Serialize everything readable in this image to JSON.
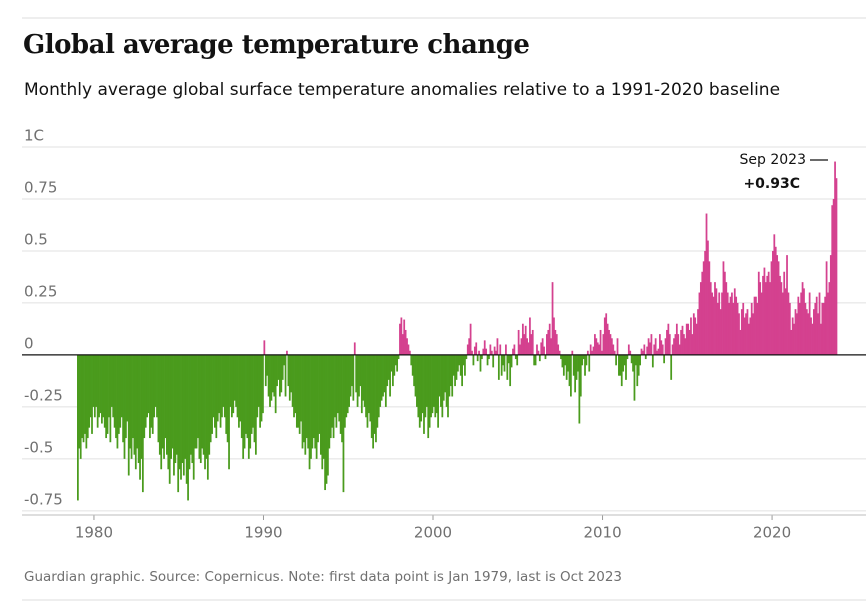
{
  "chart_data": {
    "type": "bar",
    "title": "Global average temperature change",
    "subtitle": "Monthly average global surface temperature anomalies relative to a 1991-2020 baseline",
    "source": "Guardian graphic. Source: Copernicus. Note: first data point is Jan 1979, last is Oct 2023",
    "annotation": {
      "label": "Sep 2023",
      "value_label": "+0.93C"
    },
    "positive_color": "#d4418f",
    "negative_color": "#4a9b1d",
    "grid": true,
    "xlim": [
      1979,
      2023.83
    ],
    "xticks": [
      1980,
      1990,
      2000,
      2010,
      2020
    ],
    "ylim": [
      -0.77,
      1
    ],
    "yticks": [
      {
        "value": 1,
        "label": "1C"
      },
      0.75,
      0.5,
      0.25,
      0,
      -0.25,
      -0.5,
      -0.75
    ],
    "values": [
      -0.7,
      -0.45,
      -0.5,
      -0.4,
      -0.42,
      -0.38,
      -0.45,
      -0.4,
      -0.35,
      -0.3,
      -0.38,
      -0.25,
      -0.3,
      -0.25,
      -0.35,
      -0.3,
      -0.28,
      -0.33,
      -0.3,
      -0.35,
      -0.4,
      -0.38,
      -0.3,
      -0.42,
      -0.25,
      -0.3,
      -0.35,
      -0.4,
      -0.45,
      -0.38,
      -0.35,
      -0.3,
      -0.42,
      -0.5,
      -0.4,
      -0.32,
      -0.58,
      -0.45,
      -0.5,
      -0.4,
      -0.48,
      -0.55,
      -0.45,
      -0.52,
      -0.6,
      -0.5,
      -0.66,
      -0.4,
      -0.35,
      -0.3,
      -0.28,
      -0.4,
      -0.35,
      -0.38,
      -0.3,
      -0.25,
      -0.3,
      -0.42,
      -0.48,
      -0.55,
      -0.45,
      -0.5,
      -0.4,
      -0.48,
      -0.55,
      -0.62,
      -0.5,
      -0.45,
      -0.58,
      -0.52,
      -0.48,
      -0.66,
      -0.55,
      -0.6,
      -0.52,
      -0.58,
      -0.5,
      -0.62,
      -0.7,
      -0.55,
      -0.48,
      -0.52,
      -0.6,
      -0.45,
      -0.45,
      -0.4,
      -0.5,
      -0.52,
      -0.45,
      -0.48,
      -0.55,
      -0.5,
      -0.6,
      -0.48,
      -0.42,
      -0.38,
      -0.3,
      -0.35,
      -0.4,
      -0.32,
      -0.28,
      -0.35,
      -0.3,
      -0.25,
      -0.3,
      -0.38,
      -0.42,
      -0.55,
      -0.25,
      -0.3,
      -0.28,
      -0.22,
      -0.25,
      -0.3,
      -0.35,
      -0.32,
      -0.4,
      -0.5,
      -0.45,
      -0.38,
      -0.4,
      -0.5,
      -0.45,
      -0.38,
      -0.35,
      -0.42,
      -0.48,
      -0.3,
      -0.25,
      -0.35,
      -0.32,
      -0.28,
      0.07,
      -0.15,
      -0.1,
      -0.2,
      -0.25,
      -0.22,
      -0.18,
      -0.2,
      -0.28,
      -0.15,
      -0.12,
      -0.2,
      -0.18,
      -0.12,
      -0.05,
      -0.2,
      0.02,
      -0.15,
      -0.22,
      -0.18,
      -0.25,
      -0.3,
      -0.28,
      -0.35,
      -0.35,
      -0.38,
      -0.32,
      -0.45,
      -0.42,
      -0.48,
      -0.4,
      -0.45,
      -0.55,
      -0.5,
      -0.45,
      -0.4,
      -0.45,
      -0.5,
      -0.42,
      -0.38,
      -0.48,
      -0.55,
      -0.5,
      -0.65,
      -0.62,
      -0.58,
      -0.45,
      -0.4,
      -0.35,
      -0.4,
      -0.3,
      -0.35,
      -0.28,
      -0.32,
      -0.38,
      -0.42,
      -0.66,
      -0.35,
      -0.3,
      -0.28,
      -0.25,
      -0.2,
      -0.15,
      -0.22,
      0.06,
      -0.18,
      -0.25,
      -0.2,
      -0.15,
      -0.28,
      -0.22,
      -0.25,
      -0.3,
      -0.35,
      -0.28,
      -0.32,
      -0.4,
      -0.45,
      -0.38,
      -0.42,
      -0.35,
      -0.3,
      -0.25,
      -0.22,
      -0.2,
      -0.18,
      -0.25,
      -0.15,
      -0.12,
      -0.2,
      -0.08,
      -0.15,
      -0.1,
      -0.05,
      -0.08,
      -0.02,
      0.15,
      0.18,
      0.1,
      0.17,
      0.12,
      0.08,
      0.05,
      0.02,
      -0.05,
      -0.1,
      -0.15,
      -0.2,
      -0.25,
      -0.3,
      -0.35,
      -0.32,
      -0.28,
      -0.38,
      -0.3,
      -0.25,
      -0.4,
      -0.35,
      -0.3,
      -0.28,
      -0.25,
      -0.3,
      -0.28,
      -0.35,
      -0.2,
      -0.25,
      -0.3,
      -0.22,
      -0.18,
      -0.25,
      -0.3,
      -0.2,
      -0.15,
      -0.2,
      -0.1,
      -0.15,
      -0.12,
      -0.08,
      -0.05,
      -0.1,
      -0.15,
      -0.05,
      -0.1,
      -0.02,
      0.05,
      0.08,
      0.15,
      0.02,
      -0.05,
      0.04,
      0.06,
      -0.03,
      0.02,
      -0.08,
      -0.02,
      0.03,
      0.07,
      0.03,
      -0.05,
      -0.02,
      0.05,
      0.02,
      -0.06,
      0.04,
      0.02,
      0.08,
      -0.12,
      0.05,
      -0.1,
      -0.05,
      -0.08,
      0.05,
      -0.12,
      -0.04,
      -0.15,
      -0.06,
      0.03,
      0.05,
      -0.02,
      -0.05,
      0.12,
      0.05,
      0.08,
      0.15,
      0.1,
      0.14,
      0.08,
      0.06,
      0.18,
      0.1,
      0.12,
      -0.05,
      -0.05,
      0.05,
      0.02,
      -0.03,
      0.06,
      0.08,
      0.04,
      -0.02,
      0.1,
      0.12,
      0.15,
      0.08,
      0.35,
      0.18,
      0.12,
      0.1,
      0.05,
      0.02,
      -0.02,
      -0.06,
      -0.1,
      -0.05,
      -0.12,
      -0.08,
      -0.15,
      -0.2,
      0.02,
      -0.1,
      -0.18,
      -0.12,
      -0.08,
      -0.33,
      -0.2,
      -0.05,
      -0.02,
      -0.1,
      -0.05,
      0.02,
      -0.08,
      0.05,
      0.02,
      0.04,
      0.1,
      0.08,
      0.06,
      0.05,
      0.12,
      0.02,
      0.1,
      0.18,
      0.2,
      0.15,
      0.12,
      0.1,
      0.08,
      0.05,
      0.02,
      -0.05,
      0.08,
      -0.1,
      -0.1,
      -0.15,
      -0.08,
      -0.05,
      -0.12,
      -0.02,
      0.05,
      0.02,
      -0.04,
      -0.08,
      -0.22,
      -0.05,
      -0.15,
      -0.1,
      -0.05,
      0.03,
      0.02,
      0.05,
      -0.02,
      0.04,
      0.08,
      0.06,
      0.1,
      -0.06,
      0.05,
      0.08,
      0.02,
      0.03,
      0.1,
      0.07,
      0.05,
      -0.04,
      0.08,
      0.12,
      0.15,
      0.1,
      -0.12,
      0.05,
      0.08,
      0.1,
      0.15,
      0.1,
      0.05,
      0.12,
      0.14,
      0.1,
      0.08,
      0.15,
      0.15,
      0.12,
      0.18,
      0.1,
      0.2,
      0.18,
      0.15,
      0.22,
      0.3,
      0.35,
      0.4,
      0.45,
      0.5,
      0.68,
      0.55,
      0.45,
      0.35,
      0.3,
      0.28,
      0.35,
      0.32,
      0.25,
      0.3,
      0.22,
      0.3,
      0.45,
      0.4,
      0.35,
      0.3,
      0.25,
      0.28,
      0.3,
      0.25,
      0.32,
      0.28,
      0.25,
      0.2,
      0.12,
      0.22,
      0.25,
      0.18,
      0.2,
      0.22,
      0.15,
      0.18,
      0.25,
      0.2,
      0.28,
      0.28,
      0.25,
      0.4,
      0.35,
      0.3,
      0.38,
      0.42,
      0.35,
      0.38,
      0.4,
      0.35,
      0.45,
      0.5,
      0.58,
      0.52,
      0.48,
      0.45,
      0.38,
      0.35,
      0.3,
      0.4,
      0.32,
      0.48,
      0.3,
      0.25,
      0.12,
      0.18,
      0.15,
      0.22,
      0.2,
      0.28,
      0.25,
      0.3,
      0.35,
      0.32,
      0.25,
      0.22,
      0.2,
      0.3,
      0.18,
      0.15,
      0.22,
      0.25,
      0.28,
      0.2,
      0.3,
      0.15,
      0.25,
      0.25,
      0.28,
      0.45,
      0.3,
      0.35,
      0.48,
      0.72,
      0.75,
      0.93,
      0.85
    ]
  }
}
